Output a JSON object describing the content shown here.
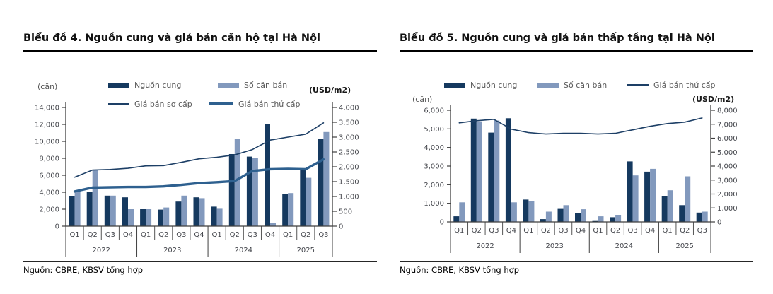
{
  "chart_data": [
    {
      "type": "bar+line",
      "title": "Biểu đồ 4. Nguồn cung và giá bán căn hộ tại Hà Nội",
      "source": "Nguồn: CBRE, KBSV tổng hợp",
      "categories": [
        "Q1",
        "Q2",
        "Q3",
        "Q4",
        "Q1",
        "Q2",
        "Q3",
        "Q4",
        "Q1",
        "Q2",
        "Q3",
        "Q4",
        "Q1",
        "Q2",
        "Q3"
      ],
      "year_groups": [
        {
          "label": "2022",
          "quarters": 4
        },
        {
          "label": "2023",
          "quarters": 4
        },
        {
          "label": "2024",
          "quarters": 4
        },
        {
          "label": "2025",
          "quarters": 3
        }
      ],
      "left_axis": {
        "unit": "(căn)",
        "min": 0,
        "max": 14000,
        "tick_values": [
          0,
          2000,
          4000,
          6000,
          8000,
          10000,
          12000,
          14000
        ],
        "tick_labels": [
          "0",
          "2,000",
          "4,000",
          "6,000",
          "8,000",
          "10,000",
          "12,000",
          "14,000"
        ]
      },
      "right_axis": {
        "unit": "(USD/m2)",
        "min": 0,
        "max": 4000,
        "tick_values": [
          0,
          500,
          1000,
          1500,
          2000,
          2500,
          3000,
          3500,
          4000
        ],
        "tick_labels": [
          "0",
          "500",
          "1,000",
          "1,500",
          "2,000",
          "2,500",
          "3,000",
          "3,500",
          "4,000"
        ]
      },
      "bar_series": [
        {
          "name": "Nguồn cung",
          "axis": "left",
          "color": "#15395f",
          "values": [
            3500,
            4000,
            3600,
            3400,
            2000,
            1950,
            2900,
            3400,
            2300,
            8500,
            8200,
            12000,
            3800,
            6600,
            10300
          ]
        },
        {
          "name": "Số căn bán",
          "axis": "left",
          "color": "#8299bd",
          "values": [
            4200,
            6600,
            3600,
            2000,
            2000,
            2200,
            3600,
            3300,
            2050,
            10300,
            8000,
            400,
            3900,
            5700,
            11100
          ]
        }
      ],
      "line_series": [
        {
          "name": "Giá bán thứ cấp",
          "axis": "right",
          "color": "#2e608f",
          "style": "thick",
          "values": [
            1170,
            1300,
            1310,
            1320,
            1320,
            1340,
            1390,
            1450,
            1480,
            1520,
            1860,
            1920,
            1930,
            1920,
            2250
          ]
        },
        {
          "name": "Giá bán sơ cấp",
          "axis": "right",
          "color": "#1d3f66",
          "style": "thin",
          "values": [
            1650,
            1890,
            1910,
            1950,
            2030,
            2040,
            2150,
            2270,
            2320,
            2400,
            2580,
            2900,
            3000,
            3100,
            3480
          ]
        }
      ],
      "legend": [
        {
          "label": "Nguồn cung",
          "swatch": "bar",
          "color": "#15395f"
        },
        {
          "label": "Số căn bán",
          "swatch": "bar",
          "color": "#8299bd"
        },
        {
          "label": "Giá bán sơ cấp",
          "swatch": "line",
          "color": "#1d3f66"
        },
        {
          "label": "Giá bán thứ cấp",
          "swatch": "line-thick",
          "color": "#2e608f"
        }
      ]
    },
    {
      "type": "bar+line",
      "title": "Biểu đồ 5. Nguồn cung và giá bán thấp tầng tại Hà Nội",
      "source": "Nguồn: CBRE, KBSV tổng hợp",
      "categories": [
        "Q1",
        "Q2",
        "Q3",
        "Q4",
        "Q1",
        "Q2",
        "Q3",
        "Q4",
        "Q1",
        "Q2",
        "Q3",
        "Q4",
        "Q1",
        "Q2",
        "Q3"
      ],
      "year_groups": [
        {
          "label": "2022",
          "quarters": 4
        },
        {
          "label": "2023",
          "quarters": 4
        },
        {
          "label": "2024",
          "quarters": 4
        },
        {
          "label": "2025",
          "quarters": 3
        }
      ],
      "left_axis": {
        "unit": "(căn)",
        "min": 0,
        "max": 6000,
        "tick_values": [
          0,
          1000,
          2000,
          3000,
          4000,
          5000,
          6000
        ],
        "tick_labels": [
          "0",
          "1,000",
          "2,000",
          "3,000",
          "4,000",
          "5,000",
          "6,000"
        ]
      },
      "right_axis": {
        "unit": "(USD/m2)",
        "min": 0,
        "max": 8000,
        "tick_values": [
          0,
          1000,
          2000,
          3000,
          4000,
          5000,
          6000,
          7000,
          8000
        ],
        "tick_labels": [
          "0",
          "1,000",
          "2,000",
          "3,000",
          "4,000",
          "5,000",
          "6,000",
          "7,000",
          "8,000"
        ]
      },
      "bar_series": [
        {
          "name": "Nguồn cung",
          "axis": "left",
          "color": "#15395f",
          "values": [
            300,
            5550,
            4800,
            5570,
            1200,
            150,
            700,
            480,
            50,
            250,
            3250,
            2700,
            1400,
            900,
            500
          ]
        },
        {
          "name": "Số căn bán",
          "axis": "left",
          "color": "#8299bd",
          "values": [
            1050,
            5400,
            5450,
            1050,
            1100,
            550,
            900,
            680,
            300,
            380,
            2500,
            2850,
            1700,
            2450,
            550
          ]
        }
      ],
      "line_series": [
        {
          "name": "Giá bán thứ cấp",
          "axis": "right",
          "color": "#1d3f66",
          "style": "thin",
          "values": [
            7100,
            7250,
            7350,
            6650,
            6400,
            6300,
            6350,
            6350,
            6300,
            6350,
            6600,
            6850,
            7050,
            7150,
            7450
          ]
        }
      ],
      "legend": [
        {
          "label": "Nguồn cung",
          "swatch": "bar",
          "color": "#15395f"
        },
        {
          "label": "Số căn bán",
          "swatch": "bar",
          "color": "#8299bd"
        },
        {
          "label": "Giá bán thứ cấp",
          "swatch": "line",
          "color": "#1d3f66"
        }
      ]
    }
  ]
}
